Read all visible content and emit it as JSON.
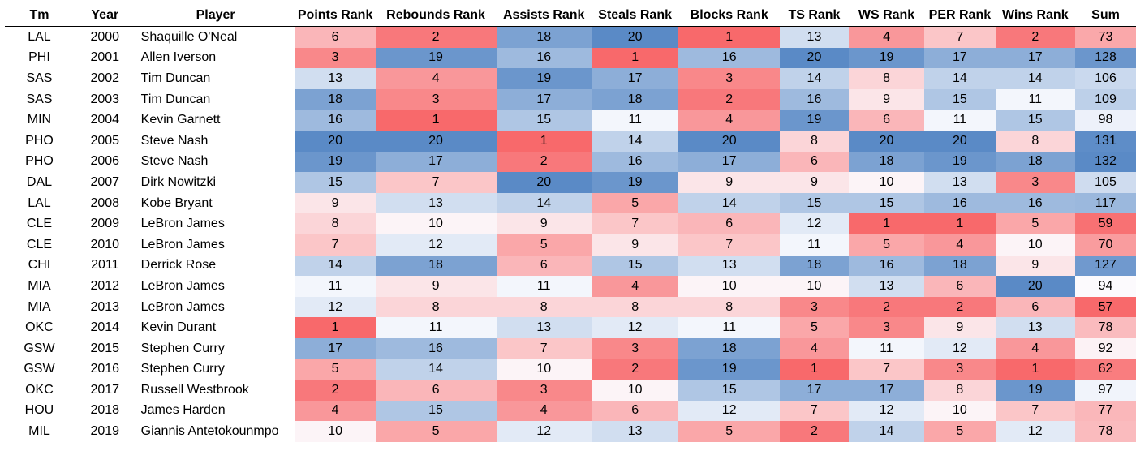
{
  "headers": {
    "team": "Tm",
    "year": "Year",
    "player": "Player",
    "rank_columns": [
      "Points Rank",
      "Rebounds Rank",
      "Assists Rank",
      "Steals Rank",
      "Blocks Rank",
      "TS Rank",
      "WS Rank",
      "PER Rank",
      "Wins Rank"
    ],
    "sum": "Sum"
  },
  "colors": {
    "low": "#f8696b",
    "mid": "#fcfcff",
    "high": "#5a8ac6"
  },
  "chart_data": {
    "type": "table",
    "note_scale": "color scale: low = red, high = blue",
    "rows": [
      {
        "tm": "LAL",
        "year": "2000",
        "player": "Shaquille O'Neal",
        "ranks": [
          6,
          2,
          18,
          20,
          1,
          13,
          4,
          7,
          2
        ],
        "sum": 73
      },
      {
        "tm": "PHI",
        "year": "2001",
        "player": "Allen Iverson",
        "ranks": [
          3,
          19,
          16,
          1,
          16,
          20,
          19,
          17,
          17
        ],
        "sum": 128
      },
      {
        "tm": "SAS",
        "year": "2002",
        "player": "Tim Duncan",
        "ranks": [
          13,
          4,
          19,
          17,
          3,
          14,
          8,
          14,
          14
        ],
        "sum": 106
      },
      {
        "tm": "SAS",
        "year": "2003",
        "player": "Tim Duncan",
        "ranks": [
          18,
          3,
          17,
          18,
          2,
          16,
          9,
          15,
          11
        ],
        "sum": 109
      },
      {
        "tm": "MIN",
        "year": "2004",
        "player": "Kevin Garnett",
        "ranks": [
          16,
          1,
          15,
          11,
          4,
          19,
          6,
          11,
          15
        ],
        "sum": 98
      },
      {
        "tm": "PHO",
        "year": "2005",
        "player": "Steve Nash",
        "ranks": [
          20,
          20,
          1,
          14,
          20,
          8,
          20,
          20,
          8
        ],
        "sum": 131
      },
      {
        "tm": "PHO",
        "year": "2006",
        "player": "Steve Nash",
        "ranks": [
          19,
          17,
          2,
          16,
          17,
          6,
          18,
          19,
          18
        ],
        "sum": 132
      },
      {
        "tm": "DAL",
        "year": "2007",
        "player": "Dirk Nowitzki",
        "ranks": [
          15,
          7,
          20,
          19,
          9,
          9,
          10,
          13,
          3
        ],
        "sum": 105
      },
      {
        "tm": "LAL",
        "year": "2008",
        "player": "Kobe Bryant",
        "ranks": [
          9,
          13,
          14,
          5,
          14,
          15,
          15,
          16,
          16
        ],
        "sum": 117
      },
      {
        "tm": "CLE",
        "year": "2009",
        "player": "LeBron James",
        "ranks": [
          8,
          10,
          9,
          7,
          6,
          12,
          1,
          1,
          5
        ],
        "sum": 59
      },
      {
        "tm": "CLE",
        "year": "2010",
        "player": "LeBron James",
        "ranks": [
          7,
          12,
          5,
          9,
          7,
          11,
          5,
          4,
          10
        ],
        "sum": 70
      },
      {
        "tm": "CHI",
        "year": "2011",
        "player": "Derrick Rose",
        "ranks": [
          14,
          18,
          6,
          15,
          13,
          18,
          16,
          18,
          9
        ],
        "sum": 127
      },
      {
        "tm": "MIA",
        "year": "2012",
        "player": "LeBron James",
        "ranks": [
          11,
          9,
          11,
          4,
          10,
          10,
          13,
          6,
          20
        ],
        "sum": 94
      },
      {
        "tm": "MIA",
        "year": "2013",
        "player": "LeBron James",
        "ranks": [
          12,
          8,
          8,
          8,
          8,
          3,
          2,
          2,
          6
        ],
        "sum": 57
      },
      {
        "tm": "OKC",
        "year": "2014",
        "player": "Kevin Durant",
        "ranks": [
          1,
          11,
          13,
          12,
          11,
          5,
          3,
          9,
          13
        ],
        "sum": 78
      },
      {
        "tm": "GSW",
        "year": "2015",
        "player": "Stephen Curry",
        "ranks": [
          17,
          16,
          7,
          3,
          18,
          4,
          11,
          12,
          4
        ],
        "sum": 92
      },
      {
        "tm": "GSW",
        "year": "2016",
        "player": "Stephen Curry",
        "ranks": [
          5,
          14,
          10,
          2,
          19,
          1,
          7,
          3,
          1
        ],
        "sum": 62
      },
      {
        "tm": "OKC",
        "year": "2017",
        "player": "Russell Westbrook",
        "ranks": [
          2,
          6,
          3,
          10,
          15,
          17,
          17,
          8,
          19
        ],
        "sum": 97
      },
      {
        "tm": "HOU",
        "year": "2018",
        "player": "James Harden",
        "ranks": [
          4,
          15,
          4,
          6,
          12,
          7,
          12,
          10,
          7
        ],
        "sum": 77
      },
      {
        "tm": "MIL",
        "year": "2019",
        "player": "Giannis Antetokounmpo",
        "ranks": [
          10,
          5,
          12,
          13,
          5,
          2,
          14,
          5,
          12
        ],
        "sum": 78
      }
    ],
    "rank_range": [
      1,
      20
    ],
    "sum_range": [
      57,
      132
    ]
  }
}
